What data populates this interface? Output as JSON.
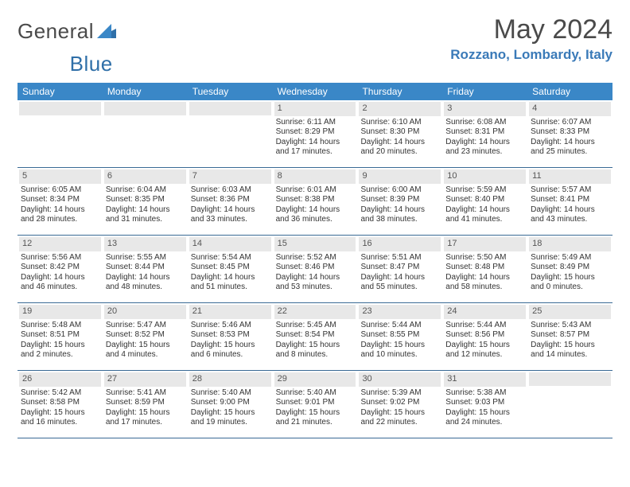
{
  "brand": {
    "name_part1": "General",
    "name_part2": "Blue"
  },
  "colors": {
    "header_blue": "#3a87c7",
    "brand_blue": "#2f6fa8",
    "location_blue": "#3a7ab8",
    "daynum_bg": "#e8e8e8",
    "week_border": "#3a6a95"
  },
  "title": "May 2024",
  "location": "Rozzano, Lombardy, Italy",
  "weekdays": [
    "Sunday",
    "Monday",
    "Tuesday",
    "Wednesday",
    "Thursday",
    "Friday",
    "Saturday"
  ],
  "weeks": [
    [
      null,
      null,
      null,
      {
        "n": "1",
        "sr": "Sunrise: 6:11 AM",
        "ss": "Sunset: 8:29 PM",
        "d1": "Daylight: 14 hours",
        "d2": "and 17 minutes."
      },
      {
        "n": "2",
        "sr": "Sunrise: 6:10 AM",
        "ss": "Sunset: 8:30 PM",
        "d1": "Daylight: 14 hours",
        "d2": "and 20 minutes."
      },
      {
        "n": "3",
        "sr": "Sunrise: 6:08 AM",
        "ss": "Sunset: 8:31 PM",
        "d1": "Daylight: 14 hours",
        "d2": "and 23 minutes."
      },
      {
        "n": "4",
        "sr": "Sunrise: 6:07 AM",
        "ss": "Sunset: 8:33 PM",
        "d1": "Daylight: 14 hours",
        "d2": "and 25 minutes."
      }
    ],
    [
      {
        "n": "5",
        "sr": "Sunrise: 6:05 AM",
        "ss": "Sunset: 8:34 PM",
        "d1": "Daylight: 14 hours",
        "d2": "and 28 minutes."
      },
      {
        "n": "6",
        "sr": "Sunrise: 6:04 AM",
        "ss": "Sunset: 8:35 PM",
        "d1": "Daylight: 14 hours",
        "d2": "and 31 minutes."
      },
      {
        "n": "7",
        "sr": "Sunrise: 6:03 AM",
        "ss": "Sunset: 8:36 PM",
        "d1": "Daylight: 14 hours",
        "d2": "and 33 minutes."
      },
      {
        "n": "8",
        "sr": "Sunrise: 6:01 AM",
        "ss": "Sunset: 8:38 PM",
        "d1": "Daylight: 14 hours",
        "d2": "and 36 minutes."
      },
      {
        "n": "9",
        "sr": "Sunrise: 6:00 AM",
        "ss": "Sunset: 8:39 PM",
        "d1": "Daylight: 14 hours",
        "d2": "and 38 minutes."
      },
      {
        "n": "10",
        "sr": "Sunrise: 5:59 AM",
        "ss": "Sunset: 8:40 PM",
        "d1": "Daylight: 14 hours",
        "d2": "and 41 minutes."
      },
      {
        "n": "11",
        "sr": "Sunrise: 5:57 AM",
        "ss": "Sunset: 8:41 PM",
        "d1": "Daylight: 14 hours",
        "d2": "and 43 minutes."
      }
    ],
    [
      {
        "n": "12",
        "sr": "Sunrise: 5:56 AM",
        "ss": "Sunset: 8:42 PM",
        "d1": "Daylight: 14 hours",
        "d2": "and 46 minutes."
      },
      {
        "n": "13",
        "sr": "Sunrise: 5:55 AM",
        "ss": "Sunset: 8:44 PM",
        "d1": "Daylight: 14 hours",
        "d2": "and 48 minutes."
      },
      {
        "n": "14",
        "sr": "Sunrise: 5:54 AM",
        "ss": "Sunset: 8:45 PM",
        "d1": "Daylight: 14 hours",
        "d2": "and 51 minutes."
      },
      {
        "n": "15",
        "sr": "Sunrise: 5:52 AM",
        "ss": "Sunset: 8:46 PM",
        "d1": "Daylight: 14 hours",
        "d2": "and 53 minutes."
      },
      {
        "n": "16",
        "sr": "Sunrise: 5:51 AM",
        "ss": "Sunset: 8:47 PM",
        "d1": "Daylight: 14 hours",
        "d2": "and 55 minutes."
      },
      {
        "n": "17",
        "sr": "Sunrise: 5:50 AM",
        "ss": "Sunset: 8:48 PM",
        "d1": "Daylight: 14 hours",
        "d2": "and 58 minutes."
      },
      {
        "n": "18",
        "sr": "Sunrise: 5:49 AM",
        "ss": "Sunset: 8:49 PM",
        "d1": "Daylight: 15 hours",
        "d2": "and 0 minutes."
      }
    ],
    [
      {
        "n": "19",
        "sr": "Sunrise: 5:48 AM",
        "ss": "Sunset: 8:51 PM",
        "d1": "Daylight: 15 hours",
        "d2": "and 2 minutes."
      },
      {
        "n": "20",
        "sr": "Sunrise: 5:47 AM",
        "ss": "Sunset: 8:52 PM",
        "d1": "Daylight: 15 hours",
        "d2": "and 4 minutes."
      },
      {
        "n": "21",
        "sr": "Sunrise: 5:46 AM",
        "ss": "Sunset: 8:53 PM",
        "d1": "Daylight: 15 hours",
        "d2": "and 6 minutes."
      },
      {
        "n": "22",
        "sr": "Sunrise: 5:45 AM",
        "ss": "Sunset: 8:54 PM",
        "d1": "Daylight: 15 hours",
        "d2": "and 8 minutes."
      },
      {
        "n": "23",
        "sr": "Sunrise: 5:44 AM",
        "ss": "Sunset: 8:55 PM",
        "d1": "Daylight: 15 hours",
        "d2": "and 10 minutes."
      },
      {
        "n": "24",
        "sr": "Sunrise: 5:44 AM",
        "ss": "Sunset: 8:56 PM",
        "d1": "Daylight: 15 hours",
        "d2": "and 12 minutes."
      },
      {
        "n": "25",
        "sr": "Sunrise: 5:43 AM",
        "ss": "Sunset: 8:57 PM",
        "d1": "Daylight: 15 hours",
        "d2": "and 14 minutes."
      }
    ],
    [
      {
        "n": "26",
        "sr": "Sunrise: 5:42 AM",
        "ss": "Sunset: 8:58 PM",
        "d1": "Daylight: 15 hours",
        "d2": "and 16 minutes."
      },
      {
        "n": "27",
        "sr": "Sunrise: 5:41 AM",
        "ss": "Sunset: 8:59 PM",
        "d1": "Daylight: 15 hours",
        "d2": "and 17 minutes."
      },
      {
        "n": "28",
        "sr": "Sunrise: 5:40 AM",
        "ss": "Sunset: 9:00 PM",
        "d1": "Daylight: 15 hours",
        "d2": "and 19 minutes."
      },
      {
        "n": "29",
        "sr": "Sunrise: 5:40 AM",
        "ss": "Sunset: 9:01 PM",
        "d1": "Daylight: 15 hours",
        "d2": "and 21 minutes."
      },
      {
        "n": "30",
        "sr": "Sunrise: 5:39 AM",
        "ss": "Sunset: 9:02 PM",
        "d1": "Daylight: 15 hours",
        "d2": "and 22 minutes."
      },
      {
        "n": "31",
        "sr": "Sunrise: 5:38 AM",
        "ss": "Sunset: 9:03 PM",
        "d1": "Daylight: 15 hours",
        "d2": "and 24 minutes."
      },
      null
    ]
  ]
}
